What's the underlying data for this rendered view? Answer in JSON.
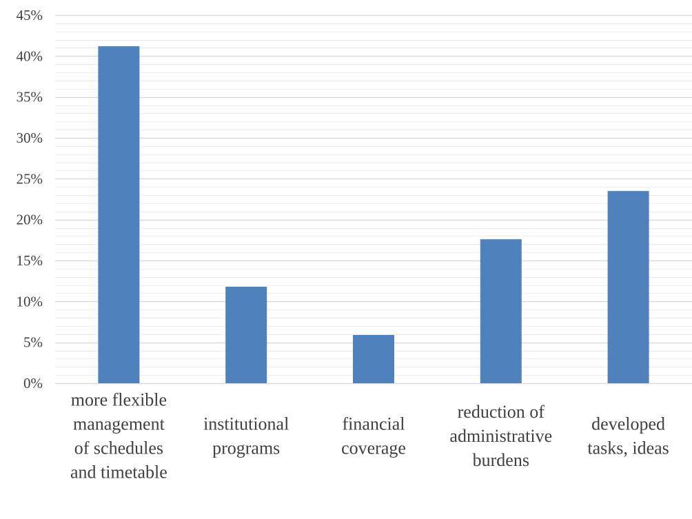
{
  "chart_data": {
    "type": "bar",
    "categories": [
      [
        "more flexible",
        "management",
        "of schedules",
        "and timetable"
      ],
      [
        "institutional",
        "programs"
      ],
      [
        "financial",
        "coverage"
      ],
      [
        "reduction of",
        "administrative",
        "burdens"
      ],
      [
        "developed",
        "tasks, ideas"
      ]
    ],
    "values": [
      41.2,
      11.8,
      5.9,
      17.6,
      23.5
    ],
    "ylim": [
      0,
      45
    ],
    "ytick_step": 5,
    "minor_grid_step": 1,
    "ytick_labels": [
      "0%",
      "5%",
      "10%",
      "15%",
      "20%",
      "25%",
      "30%",
      "35%",
      "40%",
      "45%"
    ],
    "grid": true,
    "legend": false,
    "title": "",
    "xlabel": "",
    "ylabel": "",
    "colors": {
      "bar": "#4f81bd",
      "grid_major": "#d9d9d9",
      "grid_minor": "#ededed",
      "text": "#404040"
    }
  }
}
